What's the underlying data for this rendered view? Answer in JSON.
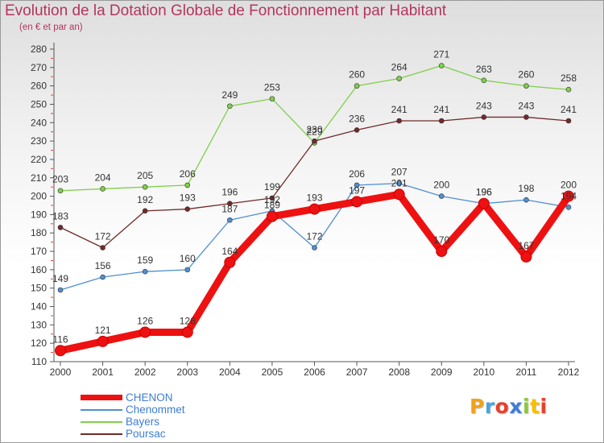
{
  "chart_data": {
    "type": "line",
    "title": "Evolution de la Dotation Globale de Fonctionnement par Habitant",
    "subtitle": "(en € et par an)",
    "x": [
      "2000",
      "2001",
      "2002",
      "2003",
      "2004",
      "2005",
      "2006",
      "2007",
      "2008",
      "2009",
      "2010",
      "2011",
      "2012"
    ],
    "ylim": [
      110,
      280
    ],
    "yticks": [
      110,
      120,
      130,
      140,
      150,
      160,
      170,
      180,
      190,
      200,
      210,
      220,
      230,
      240,
      250,
      260,
      270,
      280
    ],
    "grid": false,
    "legend": "bottom-left",
    "series": [
      {
        "name": "Chenommet",
        "color": "#4f8fd0",
        "values": [
          149,
          156,
          159,
          160,
          187,
          192,
          172,
          206,
          207,
          200,
          196,
          198,
          194
        ],
        "labels": [
          "149",
          "156",
          "159",
          "160",
          "187",
          "192",
          "172",
          "206",
          "207",
          "200",
          "196",
          "198",
          "194"
        ]
      },
      {
        "name": "Bayers",
        "color": "#7fcf4a",
        "values": [
          203,
          204,
          205,
          206,
          249,
          253,
          229,
          260,
          264,
          271,
          263,
          260,
          258
        ],
        "labels": [
          "203",
          "204",
          "205",
          "206",
          "249",
          "253",
          "229",
          "260",
          "264",
          "271",
          "263",
          "260",
          "258"
        ]
      },
      {
        "name": "Poursac",
        "color": "#722a2a",
        "values": [
          183,
          172,
          192,
          193,
          196,
          199,
          230,
          236,
          241,
          241,
          243,
          243,
          241
        ],
        "labels": [
          "183",
          "172",
          "192",
          "193",
          "196",
          "199",
          "230",
          "236",
          "241",
          "241",
          "243",
          "243",
          "241"
        ]
      },
      {
        "name": "CHENON",
        "color": "#ee1111",
        "values": [
          116,
          121,
          126,
          126,
          164,
          189,
          193,
          197,
          201,
          170,
          196,
          167,
          200
        ],
        "labels": [
          "116",
          "121",
          "126",
          "126",
          "164",
          "189",
          "193",
          "197",
          "201",
          "170",
          "196",
          "167",
          "200"
        ]
      }
    ]
  },
  "legend": {
    "items": [
      {
        "label": "CHENON",
        "color": "#ee1111"
      },
      {
        "label": "Chenommet",
        "color": "#4f8fd0"
      },
      {
        "label": "Bayers",
        "color": "#7fcf4a"
      },
      {
        "label": "Poursac",
        "color": "#722a2a"
      }
    ]
  },
  "logo": {
    "text": "Proxiti",
    "colors": [
      "#f0a21c",
      "#4aa3df",
      "#e8402a",
      "#3d7dd6",
      "#8cc63f",
      "#f5c000",
      "#e8402a"
    ]
  }
}
